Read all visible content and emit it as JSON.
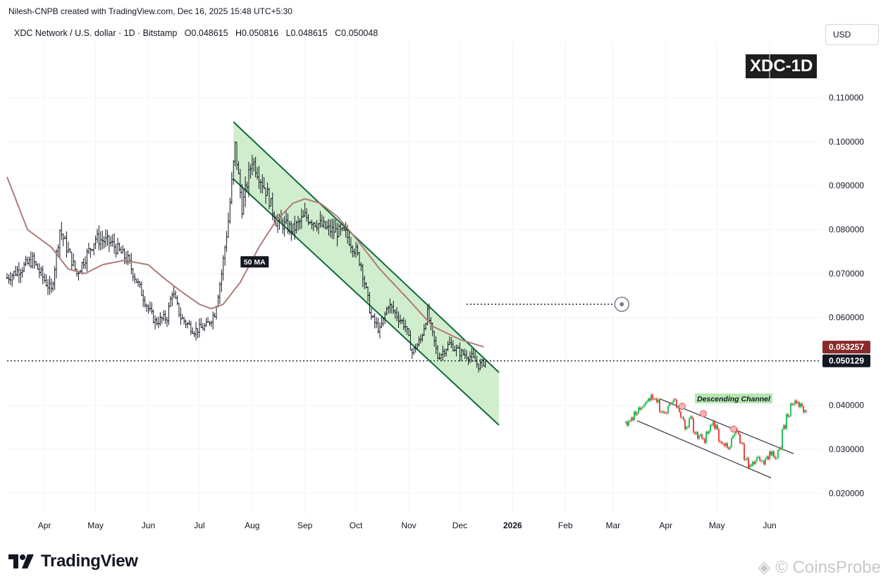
{
  "header": {
    "credit": "Nilesh-CNPB created with TradingView.com, Dec 16, 2025 15:48 UTC+5:30",
    "symbol_line": "XDC Network / U.S. dollar · 1D · Bitstamp",
    "open": "O0.048615",
    "high": "H0.050816",
    "low": "L0.048615",
    "close": "C0.050048",
    "currency": "USD",
    "ticker_badge": "XDC-1D"
  },
  "footer": {
    "brand": "TradingView",
    "watermark": "CoinsProbe"
  },
  "colors": {
    "up": "#089981",
    "down": "#131722",
    "channel_fill": "#c8ebc4",
    "channel_line": "#0f6b3c",
    "ma_line": "#b07a7a",
    "ma_label_bg": "#131722",
    "ma_price_bg": "#8b2a2a",
    "last_price_bg": "#131722",
    "inset_up": "#22c55e",
    "inset_down": "#ef4444"
  },
  "chart_data": {
    "type": "candlestick",
    "title": "XDC Network / U.S. dollar · 1D · Bitstamp",
    "ylim": [
      0.017,
      0.117
    ],
    "y_ticks": [
      "0.110000",
      "0.100000",
      "0.090000",
      "0.080000",
      "0.070000",
      "0.060000",
      "0.050000",
      "0.040000",
      "0.030000",
      "0.020000"
    ],
    "y_tick_values": [
      0.11,
      0.1,
      0.09,
      0.08,
      0.07,
      0.06,
      0.05,
      0.04,
      0.03,
      0.02
    ],
    "x_ticks": [
      "Apr",
      "May",
      "Jun",
      "Jul",
      "Aug",
      "Sep",
      "Oct",
      "Nov",
      "Dec",
      "2026",
      "Feb",
      "Mar",
      "Apr",
      "May",
      "Jun"
    ],
    "x_tick_dates": [
      "2025-04-01",
      "2025-05-01",
      "2025-06-01",
      "2025-07-01",
      "2025-08-01",
      "2025-09-01",
      "2025-10-01",
      "2025-11-01",
      "2025-12-01",
      "2026-01-01",
      "2026-02-01",
      "2026-03-01",
      "2026-04-01",
      "2026-05-01",
      "2026-06-01"
    ],
    "price_key_points": [
      [
        "2025-03-10",
        0.069
      ],
      [
        "2025-03-25",
        0.073
      ],
      [
        "2025-04-05",
        0.066
      ],
      [
        "2025-04-10",
        0.08
      ],
      [
        "2025-04-20",
        0.07
      ],
      [
        "2025-05-01",
        0.078
      ],
      [
        "2025-05-10",
        0.077
      ],
      [
        "2025-05-20",
        0.073
      ],
      [
        "2025-06-01",
        0.062
      ],
      [
        "2025-06-05",
        0.059
      ],
      [
        "2025-06-12",
        0.06
      ],
      [
        "2025-06-15",
        0.066
      ],
      [
        "2025-06-20",
        0.06
      ],
      [
        "2025-06-28",
        0.057
      ],
      [
        "2025-07-05",
        0.058
      ],
      [
        "2025-07-10",
        0.061
      ],
      [
        "2025-07-14",
        0.07
      ],
      [
        "2025-07-18",
        0.082
      ],
      [
        "2025-07-22",
        0.099
      ],
      [
        "2025-07-26",
        0.085
      ],
      [
        "2025-08-01",
        0.096
      ],
      [
        "2025-08-10",
        0.088
      ],
      [
        "2025-08-15",
        0.082
      ],
      [
        "2025-08-25",
        0.08
      ],
      [
        "2025-09-01",
        0.083
      ],
      [
        "2025-09-15",
        0.08
      ],
      [
        "2025-09-25",
        0.079
      ],
      [
        "2025-10-01",
        0.075
      ],
      [
        "2025-10-04",
        0.072
      ],
      [
        "2025-10-10",
        0.06
      ],
      [
        "2025-10-15",
        0.057
      ],
      [
        "2025-10-20",
        0.063
      ],
      [
        "2025-10-30",
        0.058
      ],
      [
        "2025-11-03",
        0.052
      ],
      [
        "2025-11-08",
        0.055
      ],
      [
        "2025-11-12",
        0.061
      ],
      [
        "2025-11-18",
        0.051
      ],
      [
        "2025-11-25",
        0.054
      ],
      [
        "2025-12-01",
        0.052
      ],
      [
        "2025-12-08",
        0.051
      ],
      [
        "2025-12-12",
        0.049
      ],
      [
        "2025-12-16",
        0.05
      ]
    ],
    "ma50_key_points": [
      [
        "2025-03-10",
        0.092
      ],
      [
        "2025-03-22",
        0.08
      ],
      [
        "2025-04-05",
        0.076
      ],
      [
        "2025-04-15",
        0.071
      ],
      [
        "2025-04-25",
        0.07
      ],
      [
        "2025-05-05",
        0.072
      ],
      [
        "2025-05-18",
        0.073
      ],
      [
        "2025-06-01",
        0.072
      ],
      [
        "2025-06-10",
        0.069
      ],
      [
        "2025-06-20",
        0.066
      ],
      [
        "2025-07-01",
        0.063
      ],
      [
        "2025-07-08",
        0.062
      ],
      [
        "2025-07-15",
        0.063
      ],
      [
        "2025-07-25",
        0.068
      ],
      [
        "2025-08-05",
        0.076
      ],
      [
        "2025-08-15",
        0.082
      ],
      [
        "2025-08-25",
        0.086
      ],
      [
        "2025-09-01",
        0.087
      ],
      [
        "2025-09-10",
        0.086
      ],
      [
        "2025-09-20",
        0.083
      ],
      [
        "2025-10-01",
        0.078
      ],
      [
        "2025-10-15",
        0.071
      ],
      [
        "2025-11-01",
        0.064
      ],
      [
        "2025-11-15",
        0.058
      ],
      [
        "2025-12-01",
        0.055
      ],
      [
        "2025-12-15",
        0.0533
      ]
    ],
    "channel_upper": [
      [
        "2025-07-21",
        0.1045
      ],
      [
        "2025-12-24",
        0.0475
      ]
    ],
    "channel_lower": [
      [
        "2025-07-21",
        0.0915
      ],
      [
        "2025-12-24",
        0.0355
      ]
    ],
    "ma_label": "50 MA",
    "ma_price_label": "0.053257",
    "last_price_label": "0.050129",
    "last_price": 0.050129,
    "target_price": 0.063,
    "inset": {
      "label": "Descending Channel",
      "price_path": [
        0.036,
        0.037,
        0.038,
        0.039,
        0.04,
        0.041,
        0.042,
        0.041,
        0.039,
        0.038,
        0.04,
        0.041,
        0.039,
        0.037,
        0.035,
        0.037,
        0.034,
        0.033,
        0.032,
        0.034,
        0.036,
        0.035,
        0.032,
        0.031,
        0.03,
        0.033,
        0.034,
        0.031,
        0.028,
        0.026,
        0.027,
        0.028,
        0.027,
        0.028,
        0.029,
        0.028,
        0.03,
        0.035,
        0.038,
        0.04,
        0.041,
        0.04,
        0.039
      ]
    }
  }
}
